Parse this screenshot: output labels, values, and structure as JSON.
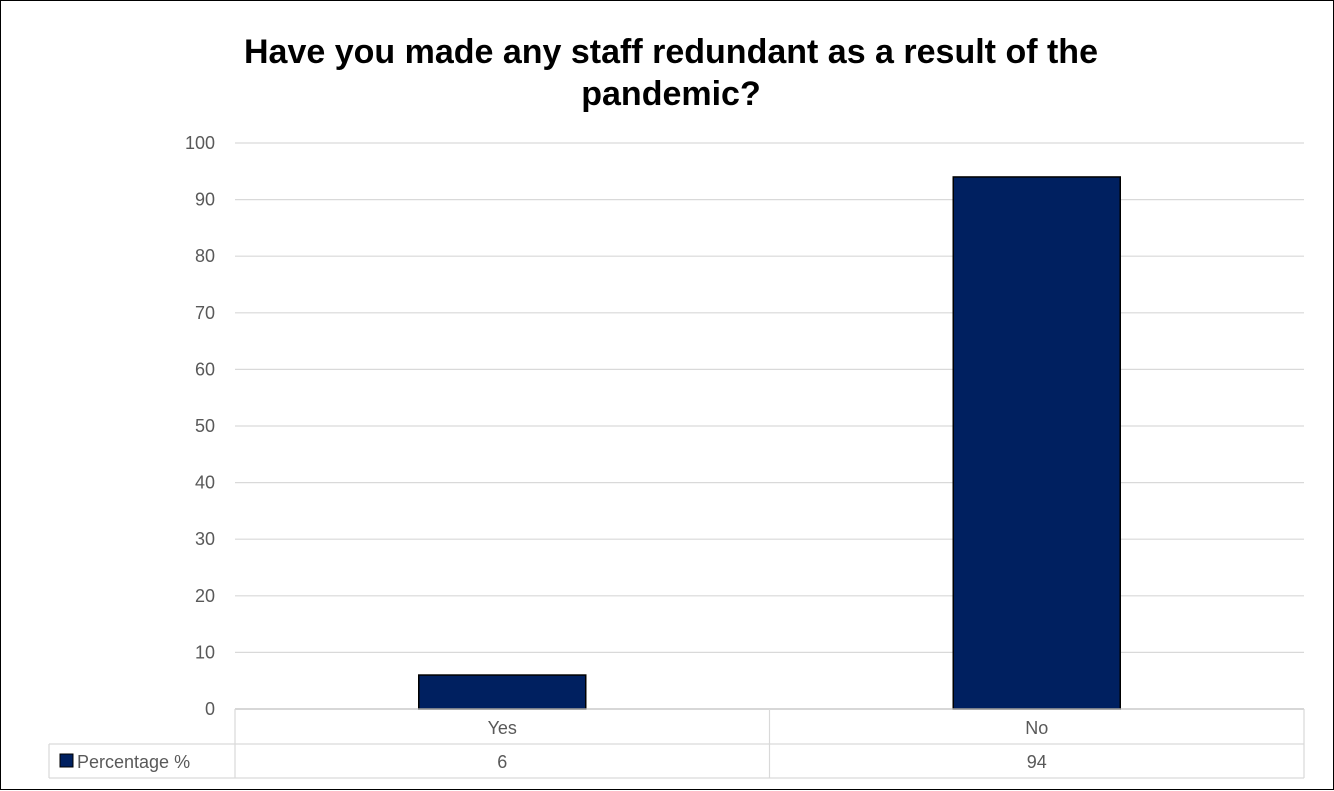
{
  "chart_data": {
    "type": "bar",
    "title_lines": [
      "Have you made any staff redundant as a result of the",
      "pandemic?"
    ],
    "categories": [
      "Yes",
      "No"
    ],
    "series": [
      {
        "name": "Percentage %",
        "values": [
          6,
          94
        ],
        "color": "#002060"
      }
    ],
    "yticks": [
      "0",
      "10",
      "20",
      "30",
      "40",
      "50",
      "60",
      "70",
      "80",
      "90",
      "100"
    ],
    "ylim": [
      0,
      100
    ],
    "grid": true,
    "legend_placement": "data-table-bottom",
    "data_table": {
      "row_label": "Percentage %",
      "values": [
        "6",
        "94"
      ]
    }
  }
}
